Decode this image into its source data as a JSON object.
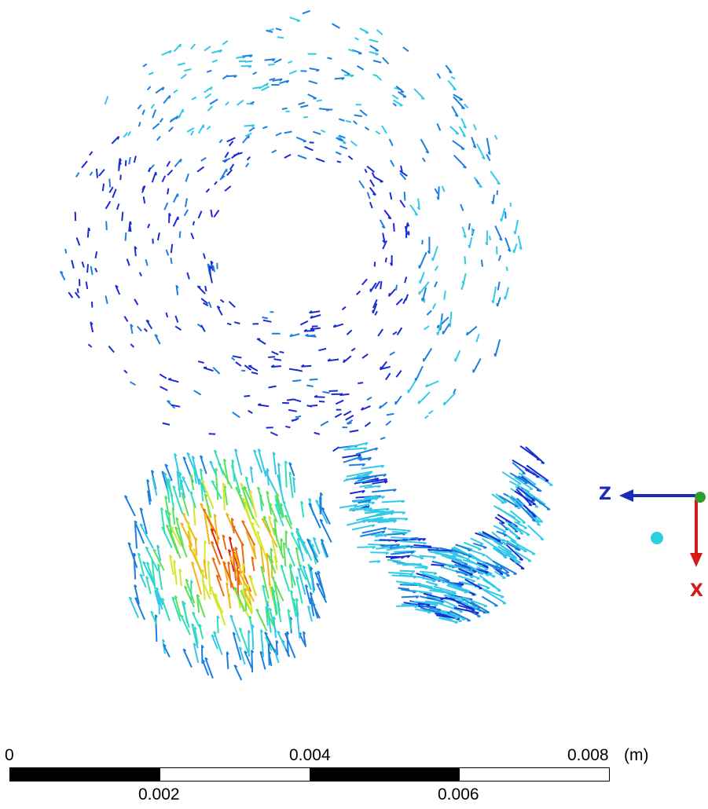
{
  "view": {
    "colors": {
      "palette": [
        "#1a2bd6",
        "#1b7fe0",
        "#33c9e8",
        "#2fe0b6",
        "#5ee05a",
        "#d8e62a",
        "#f2b417",
        "#ee6a12",
        "#d82410"
      ],
      "axis_z": "#1a2bb8",
      "axis_x": "#d61a1a",
      "origin": "#2e9c2e",
      "dot": "#2ad0e0"
    }
  },
  "triad": {
    "z_label": "Z",
    "x_label": "X"
  },
  "scale": {
    "unit": "(m)",
    "ticks_top": [
      "0",
      "0.004",
      "0.008"
    ],
    "ticks_bottom": [
      "0.002",
      "0.006"
    ],
    "segment_colors": [
      "#000000",
      "#ffffff",
      "#000000",
      "#ffffff"
    ]
  }
}
